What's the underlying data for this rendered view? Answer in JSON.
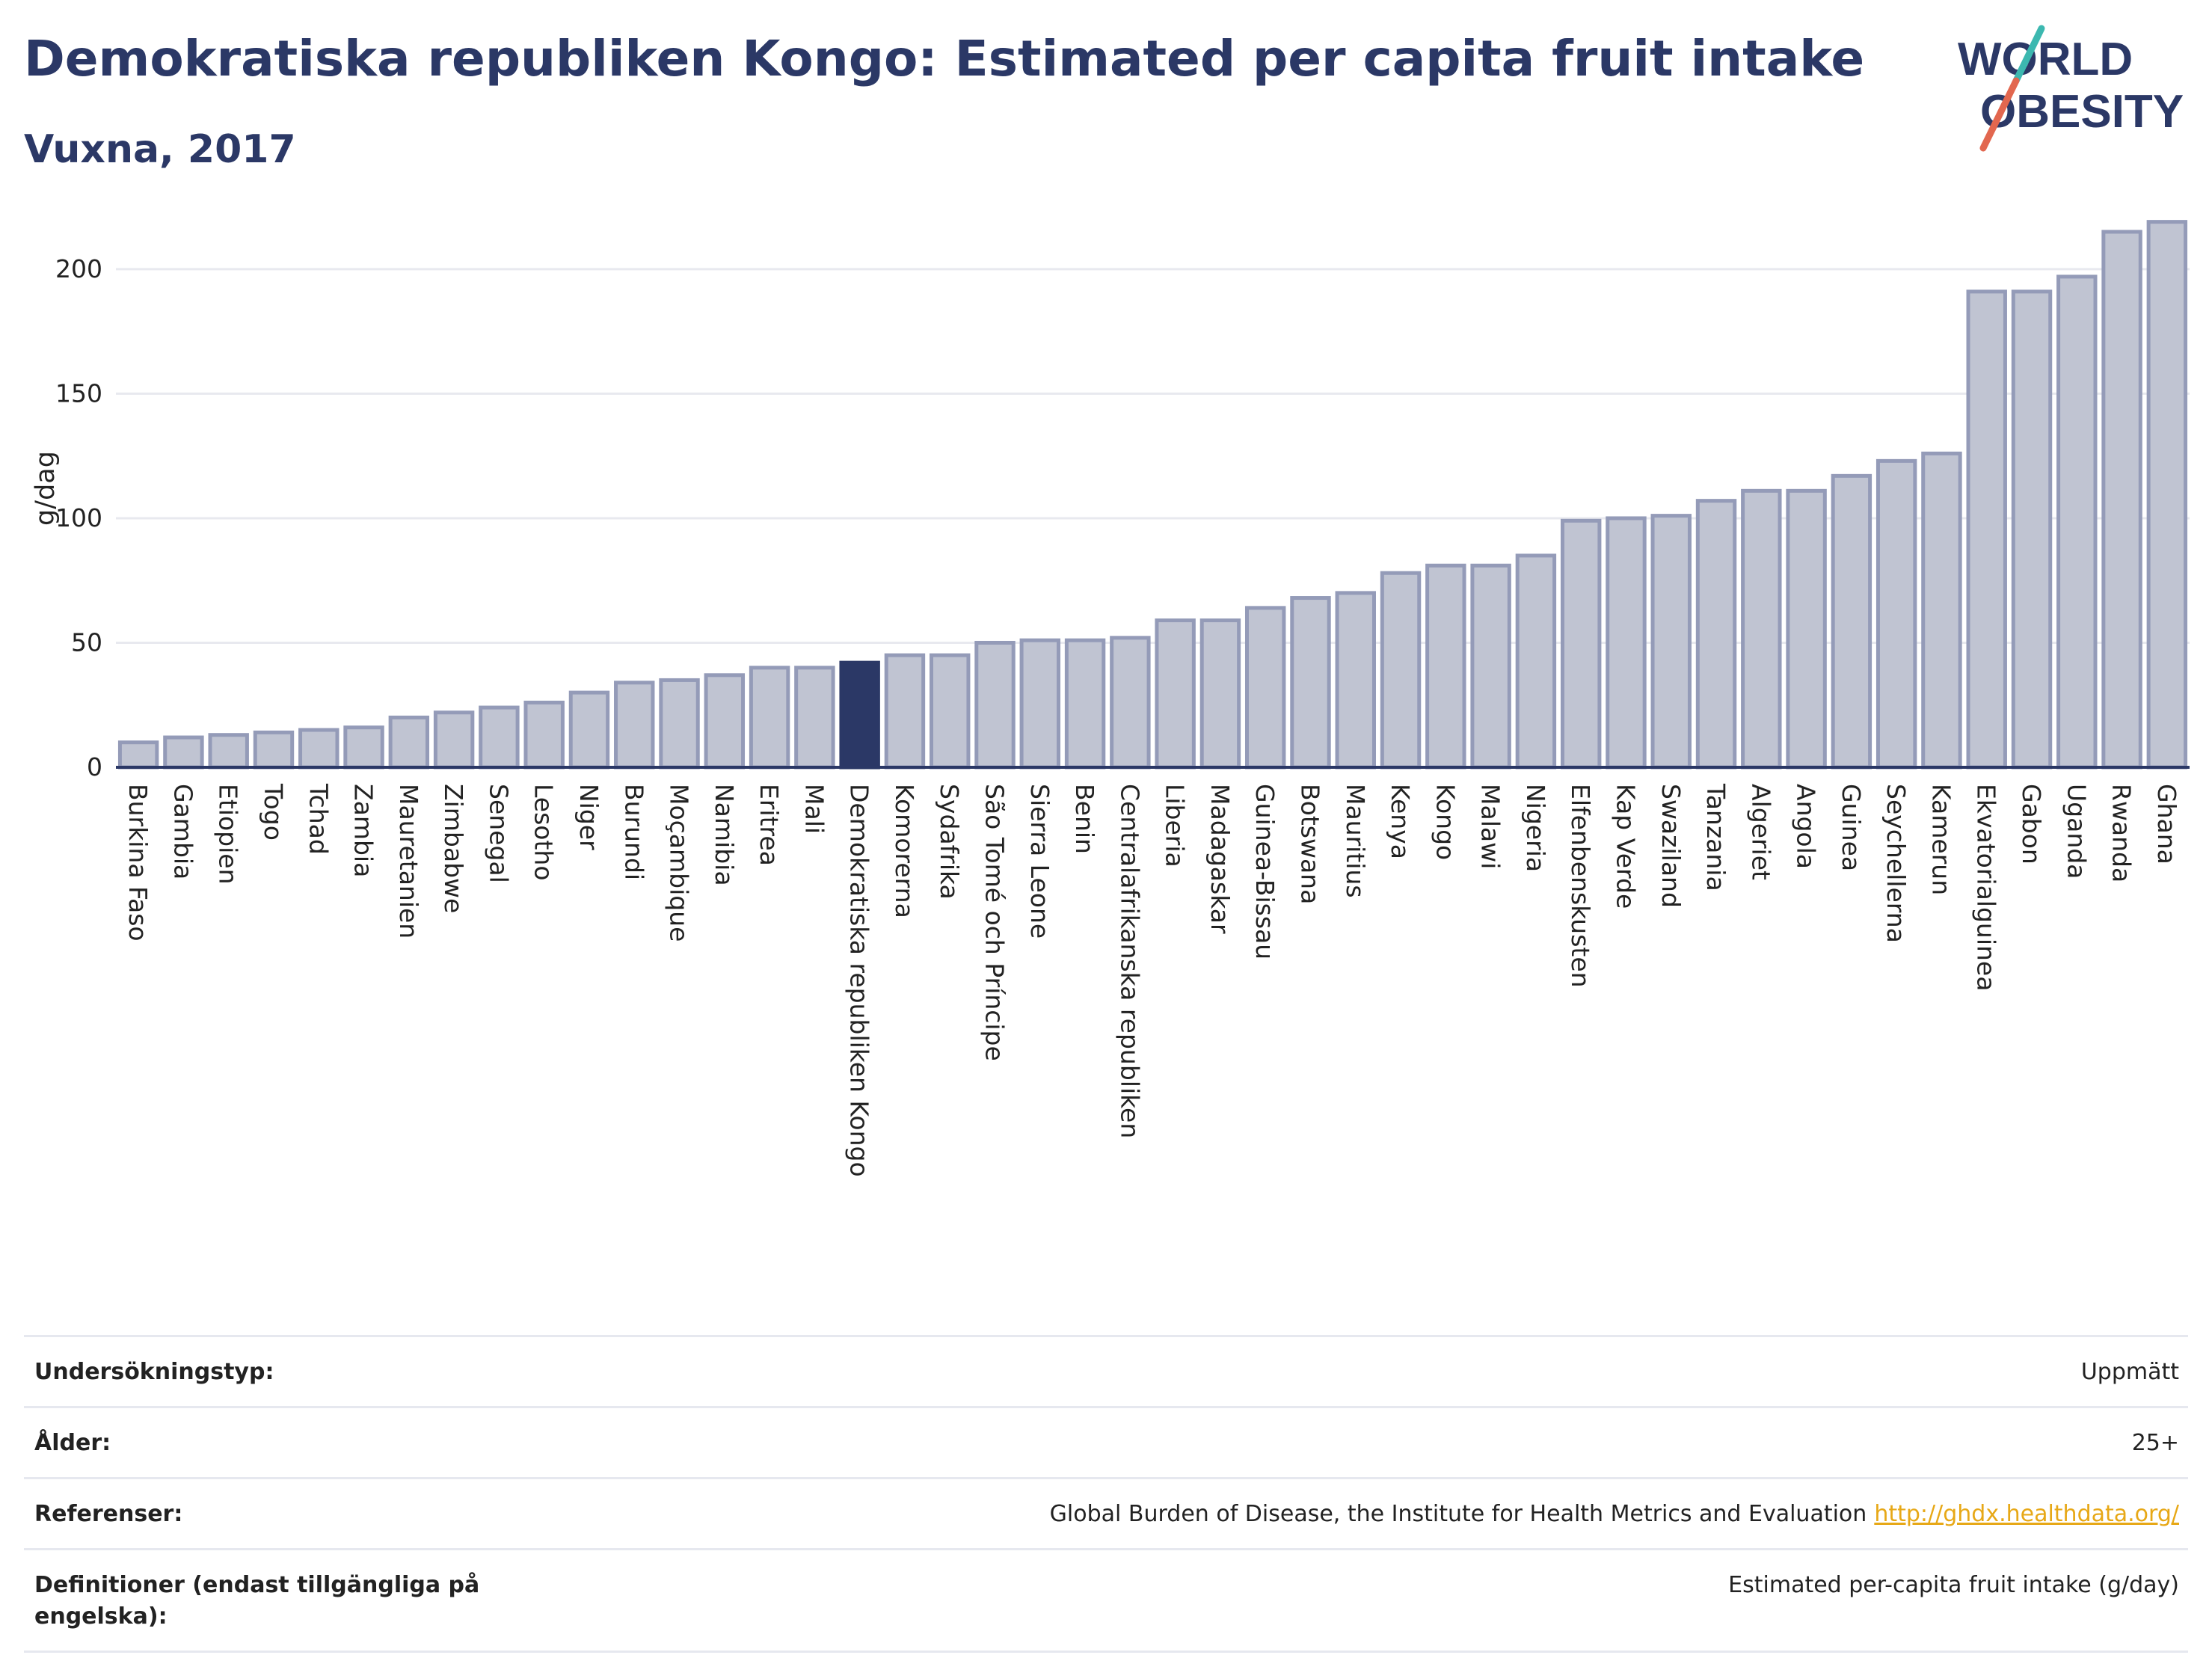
{
  "header": {
    "title": "Demokratiska republiken Kongo: Estimated per capita fruit intake",
    "subtitle": "Vuxna, 2017"
  },
  "logo": {
    "line1": "WORLD",
    "line2": "OBESITY"
  },
  "chart_data": {
    "type": "bar",
    "ylabel": "g/dag",
    "ylim": [
      0,
      230
    ],
    "yticks": [
      0,
      50,
      100,
      150,
      200
    ],
    "grid": true,
    "highlight": "Demokratiska republiken Kongo",
    "colors": {
      "bar": "#c0c4d2",
      "bar_edge": "#949bb8",
      "highlight": "#2b3866",
      "axis": "#2b3866",
      "grid": "#e8e9ef"
    },
    "categories": [
      "Burkina Faso",
      "Gambia",
      "Etiopien",
      "Togo",
      "Tchad",
      "Zambia",
      "Mauretanien",
      "Zimbabwe",
      "Senegal",
      "Lesotho",
      "Niger",
      "Burundi",
      "Moçambique",
      "Namibia",
      "Eritrea",
      "Mali",
      "Demokratiska republiken Kongo",
      "Komorerna",
      "Sydafrika",
      "São Tomé och Príncipe",
      "Sierra Leone",
      "Benin",
      "Centralafrikanska republiken",
      "Liberia",
      "Madagaskar",
      "Guinea-Bissau",
      "Botswana",
      "Mauritius",
      "Kenya",
      "Kongo",
      "Malawi",
      "Nigeria",
      "Elfenbenskusten",
      "Kap Verde",
      "Swaziland",
      "Tanzania",
      "Algeriet",
      "Angola",
      "Guinea",
      "Seychellerna",
      "Kamerun",
      "Ekvatorialguinea",
      "Gabon",
      "Uganda",
      "Rwanda",
      "Ghana"
    ],
    "values": [
      10,
      12,
      13,
      14,
      15,
      16,
      20,
      22,
      24,
      26,
      30,
      34,
      35,
      37,
      40,
      40,
      42,
      45,
      45,
      50,
      51,
      51,
      52,
      59,
      59,
      64,
      68,
      70,
      78,
      81,
      81,
      85,
      99,
      100,
      101,
      107,
      111,
      111,
      117,
      123,
      126,
      191,
      191,
      197,
      215,
      219
    ]
  },
  "meta": [
    {
      "label": "Undersökningstyp:",
      "value": "Uppmätt",
      "link": ""
    },
    {
      "label": "Ålder:",
      "value": "25+",
      "link": ""
    },
    {
      "label": "Referenser:",
      "value": "Global Burden of Disease, the Institute for Health Metrics and Evaluation",
      "link": "http://ghdx.healthdata.org/"
    },
    {
      "label": "Definitioner (endast tillgängliga på engelska):",
      "value": "Estimated per-capita fruit intake (g/day)",
      "link": ""
    }
  ]
}
